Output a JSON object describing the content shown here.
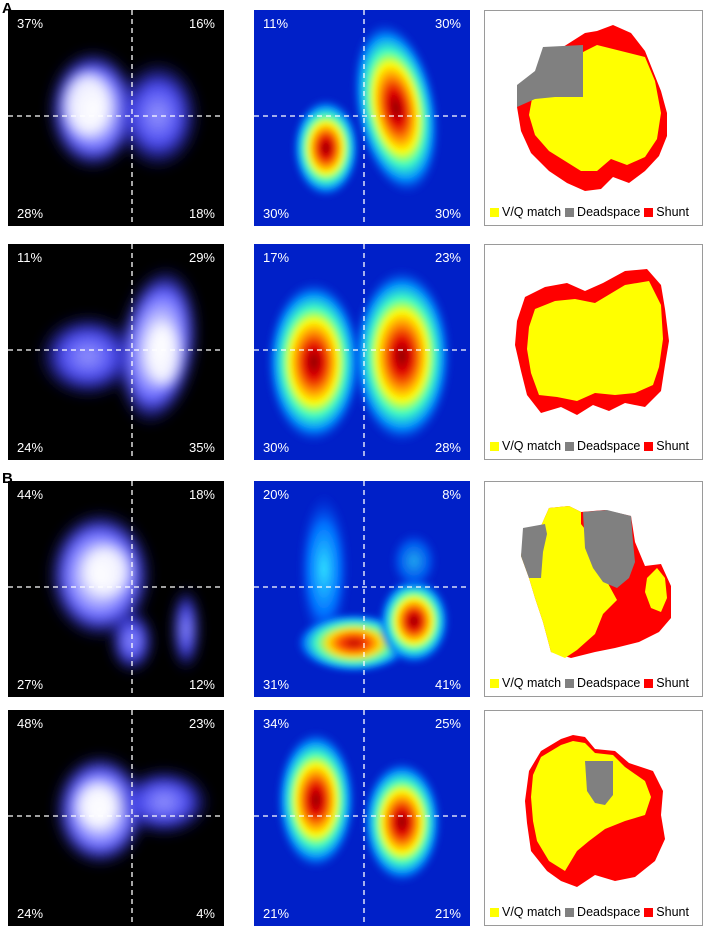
{
  "section_labels": [
    "A",
    "B"
  ],
  "legend": {
    "match": {
      "label": "V/Q match",
      "color": "#ffff00"
    },
    "dead": {
      "label": "Deadspace",
      "color": "#808080"
    },
    "shunt": {
      "label": "Shunt",
      "color": "#ff0000"
    }
  },
  "rows": [
    {
      "ventilation": {
        "tl": "37%",
        "tr": "16%",
        "bl": "28%",
        "br": "18%"
      },
      "perfusion": {
        "tl": "11%",
        "tr": "30%",
        "bl": "30%",
        "br": "30%"
      }
    },
    {
      "ventilation": {
        "tl": "11%",
        "tr": "29%",
        "bl": "24%",
        "br": "35%"
      },
      "perfusion": {
        "tl": "17%",
        "tr": "23%",
        "bl": "30%",
        "br": "28%"
      }
    },
    {
      "ventilation": {
        "tl": "44%",
        "tr": "18%",
        "bl": "27%",
        "br": "12%"
      },
      "perfusion": {
        "tl": "20%",
        "tr": "8%",
        "bl": "31%",
        "br": "41%"
      }
    },
    {
      "ventilation": {
        "tl": "48%",
        "tr": "23%",
        "bl": "24%",
        "br": "4%"
      },
      "perfusion": {
        "tl": "34%",
        "tr": "25%",
        "bl": "21%",
        "br": "21%"
      }
    }
  ]
}
